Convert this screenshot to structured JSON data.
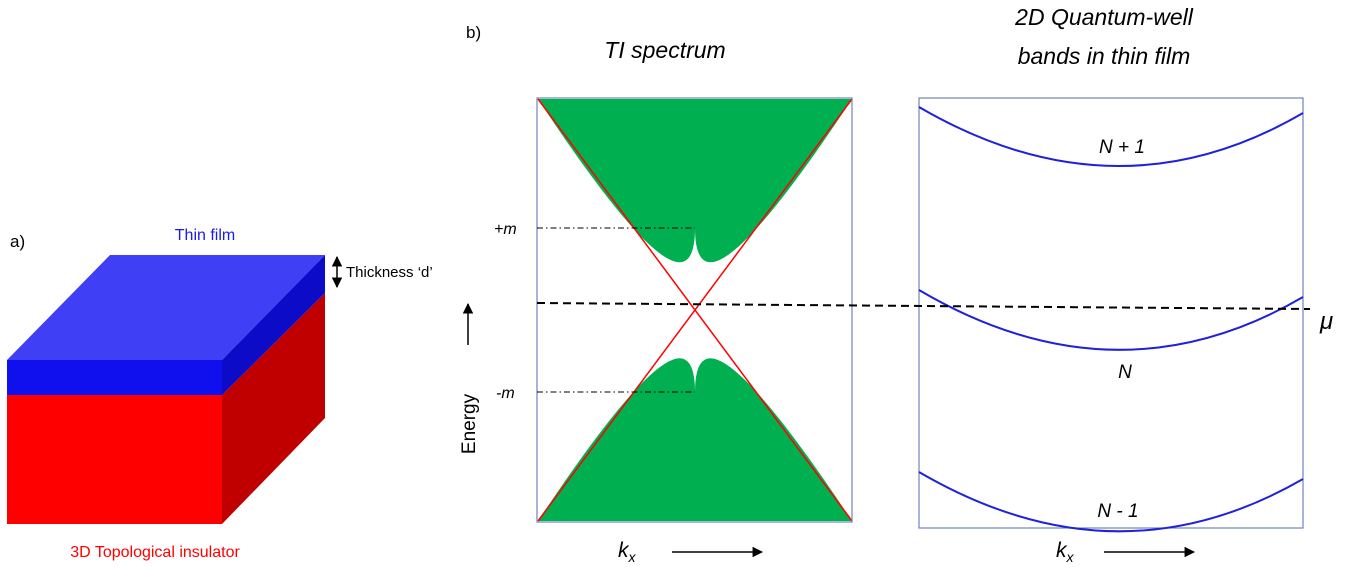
{
  "panel_a": {
    "label": "a)",
    "top_label": "Thin film",
    "thickness_label": "Thickness ‘d’",
    "bottom_label": "3D Topological insulator",
    "colors": {
      "film_top": "#3f3ff5",
      "film_front": "#1010ee",
      "film_side": "#0b0bc8",
      "ti_front": "#ff0000",
      "ti_side": "#c00000"
    }
  },
  "panel_b": {
    "label": "b)",
    "spectrum_title": "TI spectrum",
    "qw_title_line1": "2D Quantum-well",
    "qw_title_line2": "bands in thin film",
    "plus_m": "+m",
    "minus_m": "-m",
    "energy_label": "Energy",
    "kx_label": "k",
    "kx_sub": "x",
    "mu_label": "μ",
    "band_labels": [
      "N + 1",
      "N",
      "N - 1"
    ],
    "colors": {
      "bulk_band": "#00b050",
      "dirac": "#ff0000",
      "qw_band": "#2020dd",
      "frame": "#6f86b8"
    }
  }
}
